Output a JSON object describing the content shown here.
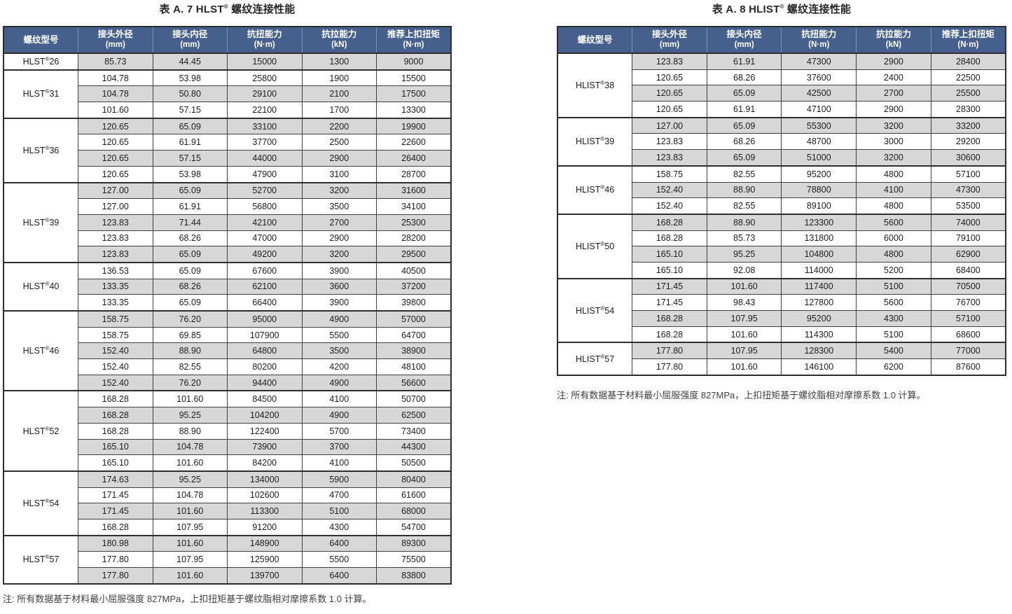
{
  "page": {
    "colors": {
      "header_bg": "#45608d",
      "header_text": "#ffffff",
      "header_divider": "#7e90b2",
      "row_stripe": "#d7d7d7",
      "border_dark": "#2e2e2e",
      "text": "#1d1d1d"
    },
    "tables": [
      {
        "title": {
          "prefix": "表 A. 7 HLST",
          "sup": "®",
          "suffix": " 螺纹连接性能"
        },
        "columns": [
          {
            "label": "螺纹型号",
            "unit": ""
          },
          {
            "label": "接头外径",
            "unit": "(mm)"
          },
          {
            "label": "接头内径",
            "unit": "(mm)"
          },
          {
            "label": "抗扭能力",
            "unit": "(N·m)"
          },
          {
            "label": "抗拉能力",
            "unit": "(kN)"
          },
          {
            "label": "推荐上扣扭矩",
            "unit": "(N·m)"
          }
        ],
        "groups": [
          {
            "model": {
              "prefix": "HLST",
              "sup": "®",
              "size": "26"
            },
            "rows": [
              [
                "85.73",
                "44.45",
                "15000",
                "1300",
                "9000"
              ]
            ]
          },
          {
            "model": {
              "prefix": "HLST",
              "sup": "®",
              "size": "31"
            },
            "rows": [
              [
                "104.78",
                "53.98",
                "25800",
                "1900",
                "15500"
              ],
              [
                "104.78",
                "50.80",
                "29100",
                "2100",
                "17500"
              ],
              [
                "101.60",
                "57.15",
                "22100",
                "1700",
                "13300"
              ]
            ]
          },
          {
            "model": {
              "prefix": "HLST",
              "sup": "®",
              "size": "36"
            },
            "rows": [
              [
                "120.65",
                "65.09",
                "33100",
                "2200",
                "19900"
              ],
              [
                "120.65",
                "61.91",
                "37700",
                "2500",
                "22600"
              ],
              [
                "120.65",
                "57.15",
                "44000",
                "2900",
                "26400"
              ],
              [
                "120.65",
                "53.98",
                "47900",
                "3100",
                "28700"
              ]
            ]
          },
          {
            "model": {
              "prefix": "HLST",
              "sup": "®",
              "size": "39"
            },
            "rows": [
              [
                "127.00",
                "65.09",
                "52700",
                "3200",
                "31600"
              ],
              [
                "127.00",
                "61.91",
                "56800",
                "3500",
                "34100"
              ],
              [
                "123.83",
                "71.44",
                "42100",
                "2700",
                "25300"
              ],
              [
                "123.83",
                "68.26",
                "47000",
                "2900",
                "28200"
              ],
              [
                "123.83",
                "65.09",
                "49200",
                "3200",
                "29500"
              ]
            ]
          },
          {
            "model": {
              "prefix": "HLST",
              "sup": "®",
              "size": "40"
            },
            "rows": [
              [
                "136.53",
                "65.09",
                "67600",
                "3900",
                "40500"
              ],
              [
                "133.35",
                "68.26",
                "62100",
                "3600",
                "37200"
              ],
              [
                "133.35",
                "65.09",
                "66400",
                "3900",
                "39800"
              ]
            ]
          },
          {
            "model": {
              "prefix": "HLST",
              "sup": "®",
              "size": "46"
            },
            "rows": [
              [
                "158.75",
                "76.20",
                "95000",
                "4900",
                "57000"
              ],
              [
                "158.75",
                "69.85",
                "107900",
                "5500",
                "64700"
              ],
              [
                "152.40",
                "88.90",
                "64800",
                "3500",
                "38900"
              ],
              [
                "152.40",
                "82.55",
                "80200",
                "4200",
                "48100"
              ],
              [
                "152.40",
                "76.20",
                "94400",
                "4900",
                "56600"
              ]
            ]
          },
          {
            "model": {
              "prefix": "HLST",
              "sup": "®",
              "size": "52"
            },
            "rows": [
              [
                "168.28",
                "101.60",
                "84500",
                "4100",
                "50700"
              ],
              [
                "168.28",
                "95.25",
                "104200",
                "4900",
                "62500"
              ],
              [
                "168.28",
                "88.90",
                "122400",
                "5700",
                "73400"
              ],
              [
                "165.10",
                "104.78",
                "73900",
                "3700",
                "44300"
              ],
              [
                "165.10",
                "101.60",
                "84200",
                "4100",
                "50500"
              ]
            ]
          },
          {
            "model": {
              "prefix": "HLST",
              "sup": "®",
              "size": "54"
            },
            "rows": [
              [
                "174.63",
                "95.25",
                "134000",
                "5900",
                "80400"
              ],
              [
                "171.45",
                "104.78",
                "102600",
                "4700",
                "61600"
              ],
              [
                "171.45",
                "101.60",
                "113300",
                "5100",
                "68000"
              ],
              [
                "168.28",
                "107.95",
                "91200",
                "4300",
                "54700"
              ]
            ]
          },
          {
            "model": {
              "prefix": "HLST",
              "sup": "®",
              "size": "57"
            },
            "rows": [
              [
                "180.98",
                "101.60",
                "148900",
                "6400",
                "89300"
              ],
              [
                "177.80",
                "107.95",
                "125900",
                "5500",
                "75500"
              ],
              [
                "177.80",
                "101.60",
                "139700",
                "6400",
                "83800"
              ]
            ]
          }
        ],
        "note": "注: 所有数据基于材料最小屈服强度 827MPa，上扣扭矩基于螺纹脂相对摩擦系数 1.0 计算。"
      },
      {
        "title": {
          "prefix": "表 A. 8 HLIST",
          "sup": "®",
          "suffix": " 螺纹连接性能"
        },
        "columns": [
          {
            "label": "螺纹型号",
            "unit": ""
          },
          {
            "label": "接头外径",
            "unit": "(mm)"
          },
          {
            "label": "接头内径",
            "unit": "(mm)"
          },
          {
            "label": "抗扭能力",
            "unit": "(N·m)"
          },
          {
            "label": "抗拉能力",
            "unit": "(kN)"
          },
          {
            "label": "推荐上扣扭矩",
            "unit": "(N·m)"
          }
        ],
        "groups": [
          {
            "model": {
              "prefix": "HLIST",
              "sup": "®",
              "size": "38"
            },
            "rows": [
              [
                "123.83",
                "61.91",
                "47300",
                "2900",
                "28400"
              ],
              [
                "120.65",
                "68.26",
                "37600",
                "2400",
                "22500"
              ],
              [
                "120.65",
                "65.09",
                "42500",
                "2700",
                "25500"
              ],
              [
                "120.65",
                "61.91",
                "47100",
                "2900",
                "28300"
              ]
            ]
          },
          {
            "model": {
              "prefix": "HLIST",
              "sup": "®",
              "size": "39"
            },
            "rows": [
              [
                "127.00",
                "65.09",
                "55300",
                "3200",
                "33200"
              ],
              [
                "123.83",
                "68.26",
                "48700",
                "3000",
                "29200"
              ],
              [
                "123.83",
                "65.09",
                "51000",
                "3200",
                "30600"
              ]
            ]
          },
          {
            "model": {
              "prefix": "HLIST",
              "sup": "®",
              "size": "46"
            },
            "rows": [
              [
                "158.75",
                "82.55",
                "95200",
                "4800",
                "57100"
              ],
              [
                "152.40",
                "88.90",
                "78800",
                "4100",
                "47300"
              ],
              [
                "152.40",
                "82.55",
                "89100",
                "4800",
                "53500"
              ]
            ]
          },
          {
            "model": {
              "prefix": "HLIST",
              "sup": "®",
              "size": "50"
            },
            "rows": [
              [
                "168.28",
                "88.90",
                "123300",
                "5600",
                "74000"
              ],
              [
                "168.28",
                "85.73",
                "131800",
                "6000",
                "79100"
              ],
              [
                "165.10",
                "95.25",
                "104800",
                "4800",
                "62900"
              ],
              [
                "165.10",
                "92.08",
                "114000",
                "5200",
                "68400"
              ]
            ]
          },
          {
            "model": {
              "prefix": "HLIST",
              "sup": "®",
              "size": "54"
            },
            "rows": [
              [
                "171.45",
                "101.60",
                "117400",
                "5100",
                "70500"
              ],
              [
                "171.45",
                "98.43",
                "127800",
                "5600",
                "76700"
              ],
              [
                "168.28",
                "107.95",
                "95200",
                "4300",
                "57100"
              ],
              [
                "168.28",
                "101.60",
                "114300",
                "5100",
                "68600"
              ]
            ]
          },
          {
            "model": {
              "prefix": "HLIST",
              "sup": "®",
              "size": "57"
            },
            "rows": [
              [
                "177.80",
                "107.95",
                "128300",
                "5400",
                "77000"
              ],
              [
                "177.80",
                "101.60",
                "146100",
                "6200",
                "87600"
              ]
            ]
          }
        ],
        "note": "注: 所有数据基于材料最小屈服强度 827MPa，上扣扭矩基于螺纹脂相对摩擦系数 1.0 计算。"
      }
    ]
  }
}
